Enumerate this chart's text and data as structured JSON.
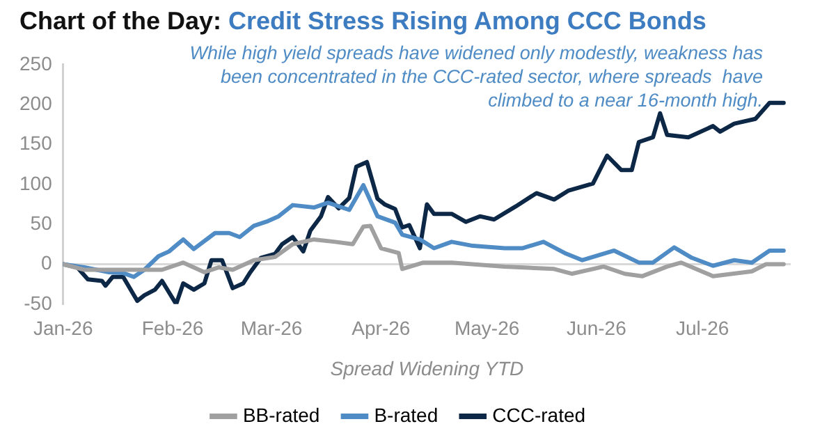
{
  "chart_data": {
    "type": "line",
    "title": "Chart of the Day:",
    "subtitle": "Credit Stress Rising Among CCC Bonds",
    "xlabel": "Spread Widening YTD",
    "annotations": [
      "While high yield spreads have widened only modestly, weakness has been concentrated in the CCC-rated sector, where spreads  have climbed to a near 16-month high."
    ],
    "xlim": [
      "2026-01-01",
      "2026-07-26"
    ],
    "xticks": [
      {
        "value": "2026-01-01",
        "label": "Jan-26"
      },
      {
        "value": "2026-02-01",
        "label": "Feb-26"
      },
      {
        "value": "2026-03-01",
        "label": "Mar-26"
      },
      {
        "value": "2026-04-01",
        "label": "Apr-26"
      },
      {
        "value": "2026-05-01",
        "label": "May-26"
      },
      {
        "value": "2026-06-01",
        "label": "Jun-26"
      },
      {
        "value": "2026-07-01",
        "label": "Jul-26"
      }
    ],
    "ylim": [
      -50,
      250
    ],
    "yticks": [
      -50,
      0,
      50,
      100,
      150,
      200,
      250
    ],
    "grid": false,
    "legend": "bottom",
    "marker": "none",
    "line_style": "solid",
    "ref_lines": [
      {
        "axis": "y",
        "value": 0,
        "color": "#d9d9d9"
      }
    ],
    "series": [
      {
        "name": "BB-rated",
        "color": "#a0a0a0",
        "x": [
          "2026-01-01",
          "2026-01-07",
          "2026-01-21",
          "2026-01-29",
          "2026-02-04",
          "2026-02-10",
          "2026-02-14",
          "2026-02-18",
          "2026-02-24",
          "2026-03-02",
          "2026-03-07",
          "2026-03-13",
          "2026-03-19",
          "2026-03-24",
          "2026-03-27",
          "2026-03-29",
          "2026-04-01",
          "2026-04-06",
          "2026-04-07",
          "2026-04-13",
          "2026-04-21",
          "2026-05-06",
          "2026-05-20",
          "2026-05-25",
          "2026-06-03",
          "2026-06-09",
          "2026-06-14",
          "2026-06-21",
          "2026-06-25",
          "2026-07-04",
          "2026-07-15",
          "2026-07-19",
          "2026-07-24"
        ],
        "values": [
          0,
          -7,
          -7,
          -7,
          2,
          -10,
          -4,
          -7,
          5,
          9,
          25,
          31,
          28,
          25,
          47,
          48,
          20,
          14,
          -6,
          2,
          2,
          -3,
          -6,
          -12,
          -3,
          -12,
          -15,
          -3,
          2,
          -15,
          -9,
          0,
          0
        ]
      },
      {
        "name": "B-rated",
        "color": "#4f8bc4",
        "x": [
          "2026-01-01",
          "2026-01-07",
          "2026-01-14",
          "2026-01-18",
          "2026-01-21",
          "2026-01-24",
          "2026-01-28",
          "2026-01-31",
          "2026-02-04",
          "2026-02-07",
          "2026-02-13",
          "2026-02-17",
          "2026-02-20",
          "2026-02-24",
          "2026-02-28",
          "2026-03-03",
          "2026-03-07",
          "2026-03-13",
          "2026-03-17",
          "2026-03-23",
          "2026-03-27",
          "2026-03-31",
          "2026-04-05",
          "2026-04-07",
          "2026-04-12",
          "2026-04-16",
          "2026-04-21",
          "2026-04-27",
          "2026-05-06",
          "2026-05-11",
          "2026-05-17",
          "2026-05-23",
          "2026-05-28",
          "2026-06-06",
          "2026-06-13",
          "2026-06-17",
          "2026-06-23",
          "2026-06-28",
          "2026-07-04",
          "2026-07-10",
          "2026-07-15",
          "2026-07-20",
          "2026-07-24"
        ],
        "values": [
          0,
          -4,
          -10,
          -11,
          -16,
          -7,
          10,
          16,
          31,
          19,
          39,
          39,
          34,
          48,
          54,
          60,
          74,
          71,
          77,
          68,
          99,
          60,
          52,
          37,
          31,
          20,
          28,
          23,
          20,
          20,
          28,
          14,
          5,
          17,
          2,
          2,
          21,
          8,
          -2,
          5,
          2,
          17,
          17
        ]
      },
      {
        "name": "CCC-rated",
        "color": "#0d2846",
        "x": [
          "2026-01-01",
          "2026-01-05",
          "2026-01-08",
          "2026-01-12",
          "2026-01-13",
          "2026-01-15",
          "2026-01-18",
          "2026-01-22",
          "2026-01-24",
          "2026-01-27",
          "2026-01-29",
          "2026-02-02",
          "2026-02-04",
          "2026-02-07",
          "2026-02-10",
          "2026-02-12",
          "2026-02-15",
          "2026-02-18",
          "2026-02-21",
          "2026-02-23",
          "2026-02-26",
          "2026-03-02",
          "2026-03-04",
          "2026-03-07",
          "2026-03-10",
          "2026-03-12",
          "2026-03-15",
          "2026-03-17",
          "2026-03-20",
          "2026-03-23",
          "2026-03-25",
          "2026-03-28",
          "2026-03-31",
          "2026-04-02",
          "2026-04-05",
          "2026-04-07",
          "2026-04-09",
          "2026-04-12",
          "2026-04-14",
          "2026-04-16",
          "2026-04-21",
          "2026-04-25",
          "2026-04-29",
          "2026-05-03",
          "2026-05-09",
          "2026-05-15",
          "2026-05-20",
          "2026-05-24",
          "2026-05-31",
          "2026-06-04",
          "2026-06-08",
          "2026-06-11",
          "2026-06-13",
          "2026-06-17",
          "2026-06-19",
          "2026-06-21",
          "2026-06-27",
          "2026-07-04",
          "2026-07-06",
          "2026-07-10",
          "2026-07-16",
          "2026-07-20",
          "2026-07-24"
        ],
        "values": [
          0,
          -4,
          -19,
          -21,
          -27,
          -16,
          -16,
          -46,
          -39,
          -32,
          -21,
          -50,
          -24,
          -32,
          -24,
          5,
          5,
          -30,
          -24,
          -10,
          8,
          13,
          25,
          34,
          16,
          42,
          60,
          84,
          70,
          83,
          122,
          128,
          82,
          75,
          69,
          46,
          49,
          20,
          75,
          63,
          63,
          53,
          60,
          56,
          72,
          89,
          81,
          92,
          101,
          136,
          118,
          118,
          153,
          159,
          189,
          162,
          159,
          173,
          166,
          176,
          182,
          202,
          202
        ]
      }
    ]
  }
}
